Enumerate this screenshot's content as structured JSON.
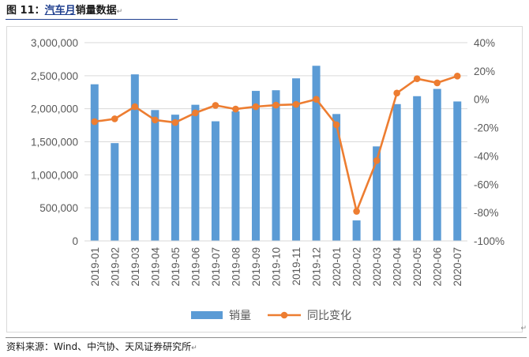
{
  "figure": {
    "label": "图 11：",
    "title_link": "汽车月",
    "title_rest": "销量数据",
    "para_mark": "↵"
  },
  "source": "资料来源：Wind、中汽协、天风证券研究所",
  "colors": {
    "bar": "#5b9bd5",
    "line": "#ed7d31",
    "grid": "#d9d9d9",
    "axis_text": "#595959"
  },
  "chart_data": {
    "type": "bar",
    "title": "",
    "categories": [
      "2019-01",
      "2019-02",
      "2019-03",
      "2019-04",
      "2019-05",
      "2019-06",
      "2019-07",
      "2019-08",
      "2019-09",
      "2019-10",
      "2019-11",
      "2019-12",
      "2020-01",
      "2020-02",
      "2020-03",
      "2020-04",
      "2020-05",
      "2020-06",
      "2020-07"
    ],
    "series": [
      {
        "name": "销量",
        "type": "bar",
        "axis": "left",
        "values": [
          2370000,
          1480000,
          2520000,
          1980000,
          1910000,
          2060000,
          1810000,
          1960000,
          2270000,
          2280000,
          2460000,
          2650000,
          1920000,
          310000,
          1430000,
          2070000,
          2190000,
          2300000,
          2110000
        ]
      },
      {
        "name": "同比变化",
        "type": "line",
        "axis": "right",
        "values": [
          -15.8,
          -13.8,
          -5.2,
          -14.6,
          -16.4,
          -9.6,
          -4.3,
          -6.9,
          -5.2,
          -4.1,
          -3.6,
          0.0,
          -18.0,
          -79.1,
          -43.3,
          4.4,
          14.5,
          11.6,
          16.4
        ]
      }
    ],
    "y_left": {
      "min": 0,
      "max": 3000000,
      "ticks": [
        0,
        500000,
        1000000,
        1500000,
        2000000,
        2500000,
        3000000
      ],
      "tick_labels": [
        "0",
        "500,000",
        "1,000,000",
        "1,500,000",
        "2,000,000",
        "2,500,000",
        "3,000,000"
      ]
    },
    "y_right": {
      "min": -100,
      "max": 40,
      "ticks": [
        -100,
        -80,
        -60,
        -40,
        -20,
        0,
        20,
        40
      ],
      "tick_labels": [
        "-100%",
        "-80%",
        "-60%",
        "-40%",
        "-20%",
        "0%",
        "20%",
        "40%"
      ]
    },
    "grid": true,
    "legend": {
      "position": "bottom",
      "entries": [
        "销量",
        "同比变化"
      ]
    }
  }
}
